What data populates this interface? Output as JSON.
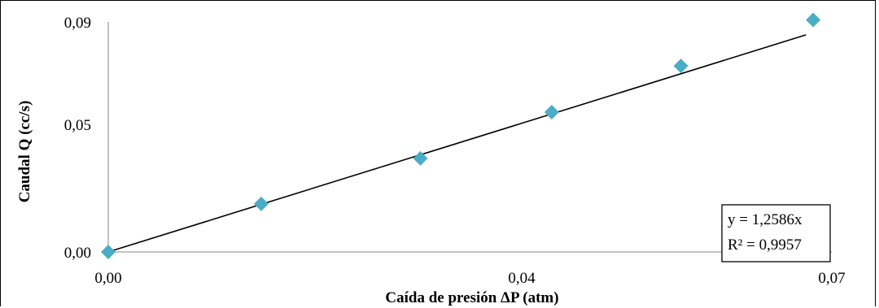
{
  "chart_data": {
    "type": "scatter",
    "title": "",
    "xlabel": "Caída de presión ΔP (atm)",
    "ylabel": "Caudal Q (cc/s)",
    "x_ticks": [
      "0,00",
      "0,04",
      "0,07"
    ],
    "x_tick_values": [
      0,
      0.04,
      0.07
    ],
    "y_ticks": [
      "0,00",
      "0,05",
      "0,09"
    ],
    "y_tick_values": [
      0,
      0.05,
      0.09
    ],
    "xlim": [
      0,
      0.07
    ],
    "ylim": [
      0,
      0.09
    ],
    "grid": false,
    "marker_color": "#4BACC6",
    "trendline_color": "#000000",
    "series": [
      {
        "x": [
          0.0,
          0.0148,
          0.0302,
          0.0429,
          0.0554,
          0.0682
        ],
        "y": [
          0.0,
          0.0188,
          0.0366,
          0.0547,
          0.0728,
          0.0908
        ]
      }
    ],
    "trendline": {
      "slope": 1.2586,
      "intercept": 0,
      "x_range": [
        0,
        0.0675
      ],
      "equation": "y = 1,2586x",
      "r_squared": "R² = 0,9957"
    }
  }
}
